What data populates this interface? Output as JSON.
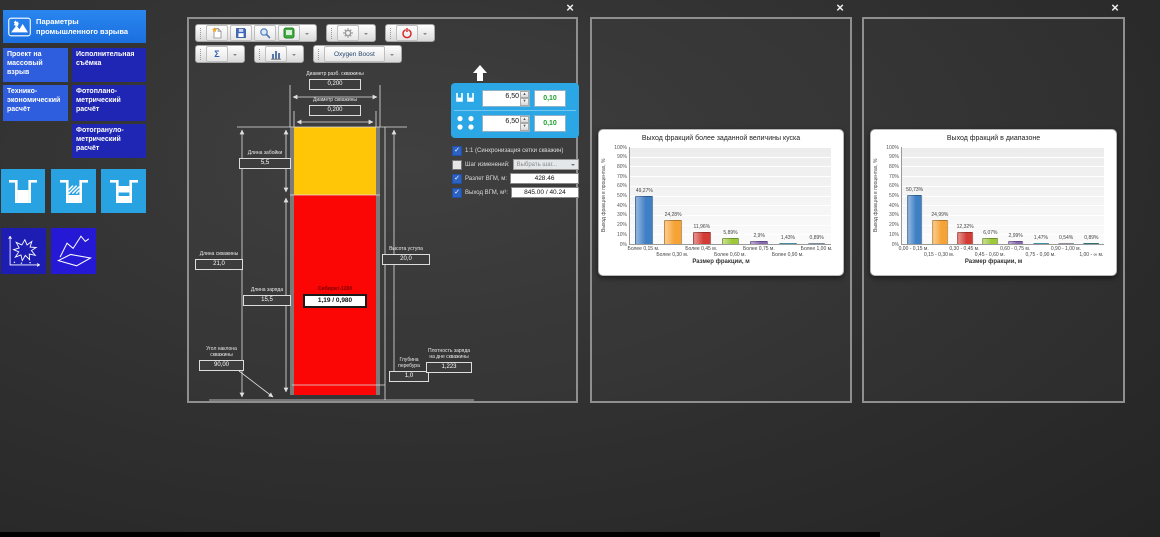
{
  "app": {
    "close_icon": "×"
  },
  "sidebar": {
    "header_tile": {
      "label": "Параметры промышленного взрыва"
    },
    "tiles": [
      {
        "label": "Проект на массовый взрыв",
        "color": "#2e5ede"
      },
      {
        "label": "Исполнительная съёмка",
        "color": "#2026b4"
      },
      {
        "label": "Технико-экономический расчёт",
        "color": "#2e5ede"
      },
      {
        "label": "Фотоплано-метрический расчёт",
        "color": "#2026b4"
      },
      {
        "label": "Фотогрануло-метрический расчёт",
        "color": "#2026b4"
      }
    ]
  },
  "window1": {
    "toolbar": {
      "sigma_label": "Σ",
      "oxygen_boost_label": "Oxygen Boost"
    },
    "diagram": {
      "colors": {
        "stemming": "#ffc607",
        "charge": "#fb0505"
      },
      "drill_diameter": {
        "caption": "Диаметр разб. скважины",
        "value": "0,200"
      },
      "hole_diameter": {
        "caption": "Диаметр скважины",
        "value": "0,200"
      },
      "stemming_length": {
        "caption": "Длина забойки",
        "value": "5,5"
      },
      "hole_length": {
        "caption": "Длина скважины",
        "value": "21,0"
      },
      "charge_length": {
        "caption": "Длина заряда",
        "value": "15,5"
      },
      "bench_height": {
        "caption": "Высота уступа",
        "value": "20,0"
      },
      "explosive": {
        "caption": "Сибирит-1200",
        "value": "1,19 / 0,980"
      },
      "hole_angle": {
        "caption": "Угол наклона скважины",
        "value": "90,00"
      },
      "overdrill": {
        "caption": "Глубина перебура",
        "value": "1,0"
      },
      "bottom_density": {
        "caption": "Плотность заряда на дне скважины",
        "value": "1,223"
      }
    },
    "panel": {
      "rows": [
        {
          "spin": "6,50",
          "value": "0,10"
        },
        {
          "spin": "6,50",
          "value": "0,10"
        }
      ],
      "checks": [
        {
          "checked": true,
          "label": "1:1 (Синхронизация сетки скважин)"
        },
        {
          "checked": false,
          "label": "Шаг изменений:",
          "dropdown": "Выбрать шаг..."
        },
        {
          "checked": true,
          "label": "Разлет ВГМ, м:",
          "value": "428.46"
        },
        {
          "checked": true,
          "label": "Выход ВГМ, м³:",
          "value": "845.00 / 40.24"
        }
      ]
    }
  },
  "chart_data": [
    {
      "type": "bar",
      "title": "Выход фракций более заданной величины куска",
      "categories": [
        "Более 0,15 м.",
        "Более 0,30 м.",
        "Более 0,45 м.",
        "Более 0,60 м.",
        "Более 0,75 м.",
        "Более 0,90 м.",
        "Более 1,00 м."
      ],
      "values": [
        49.27,
        24.28,
        11.96,
        5.89,
        2.9,
        1.43,
        0.89
      ],
      "value_labels": [
        "49,27%",
        "24,28%",
        "11,96%",
        "5,89%",
        "2,9%",
        "1,43%",
        "0,89%"
      ],
      "bar_colors": [
        "#3f7fc4",
        "#f6a335",
        "#d23c34",
        "#9cc83a",
        "#8a69b4",
        "#62c3e8",
        "#a9c6dd"
      ],
      "xlabel": "Размер фракции, м",
      "ylabel": "Выход фракции в процентах, %",
      "ylim": [
        0,
        100
      ],
      "ytick_step": 10,
      "grid": true,
      "legend": false
    },
    {
      "type": "bar",
      "title": "Выход фракций в диапазоне",
      "categories": [
        "0,00 - 0,15 м.",
        "0,15 - 0,30 м.",
        "0,30 - 0,45 м.",
        "0,45 - 0,60 м.",
        "0,60 - 0,75 м.",
        "0,75 - 0,90 м.",
        "0,90 - 1,00 м.",
        "1,00 - ∞ м."
      ],
      "values": [
        50.73,
        24.99,
        12.32,
        6.07,
        2.99,
        1.47,
        0.54,
        0.89
      ],
      "value_labels": [
        "50,73%",
        "24,99%",
        "12,32%",
        "6,07%",
        "2,99%",
        "1,47%",
        "0,54%",
        "0,89%"
      ],
      "bar_colors": [
        "#3f7fc4",
        "#f6a335",
        "#d23c34",
        "#9cc83a",
        "#8a69b4",
        "#62c3e8",
        "#c7ccd4",
        "#3d9e9e"
      ],
      "xlabel": "Размер фракции, м",
      "ylabel": "Выход фракции в процентах, %",
      "ylim": [
        0,
        100
      ],
      "ytick_step": 10,
      "grid": true,
      "legend": false
    }
  ]
}
